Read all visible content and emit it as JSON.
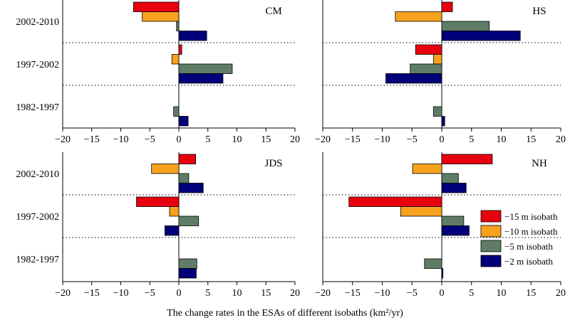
{
  "chart_data": {
    "type": "bar",
    "orientation": "horizontal",
    "xlabel": "The change rates in the ESAs of different isobaths (km²/yr)",
    "xlim": [
      -20,
      20
    ],
    "xticks": [
      "−20",
      "−15",
      "−10",
      "−5",
      "0",
      "5",
      "10",
      "15",
      "20"
    ],
    "categories": [
      "2002-2010",
      "1997-2002",
      "1982-1997"
    ],
    "legend": {
      "position": "bottom-right",
      "entries": [
        {
          "name": "−15 m isobath",
          "color": "#e8000e"
        },
        {
          "name": "−10 m isobath",
          "color": "#f6a21d"
        },
        {
          "name": "−5 m isobath",
          "color": "#5f7d66"
        },
        {
          "name": "−2 m isobath",
          "color": "#00007a"
        }
      ]
    },
    "panels": [
      {
        "title": "CM",
        "series": [
          {
            "name": "−15 m isobath",
            "values": [
              -7.8,
              0.5,
              null
            ]
          },
          {
            "name": "−10 m isobath",
            "values": [
              -6.3,
              -1.2,
              null
            ]
          },
          {
            "name": "−5 m isobath",
            "values": [
              -0.4,
              9.2,
              -0.9
            ]
          },
          {
            "name": "−2 m isobath",
            "values": [
              4.8,
              7.6,
              1.6
            ]
          }
        ]
      },
      {
        "title": "HS",
        "series": [
          {
            "name": "−15 m isobath",
            "values": [
              1.8,
              -4.4,
              null
            ]
          },
          {
            "name": "−10 m isobath",
            "values": [
              -7.8,
              -1.4,
              null
            ]
          },
          {
            "name": "−5 m isobath",
            "values": [
              8.0,
              -5.3,
              -1.4
            ]
          },
          {
            "name": "−2 m isobath",
            "values": [
              13.2,
              -9.4,
              0.5
            ]
          }
        ]
      },
      {
        "title": "JDS",
        "series": [
          {
            "name": "−15 m isobath",
            "values": [
              2.9,
              -7.3,
              null
            ]
          },
          {
            "name": "−10 m isobath",
            "values": [
              -4.7,
              -1.6,
              null
            ]
          },
          {
            "name": "−5 m isobath",
            "values": [
              1.7,
              3.4,
              3.1
            ]
          },
          {
            "name": "−2 m isobath",
            "values": [
              4.2,
              -2.4,
              3.0
            ]
          }
        ]
      },
      {
        "title": "NH",
        "series": [
          {
            "name": "−15 m isobath",
            "values": [
              8.5,
              -15.6,
              null
            ]
          },
          {
            "name": "−10 m isobath",
            "values": [
              -4.9,
              -6.9,
              null
            ]
          },
          {
            "name": "−5 m isobath",
            "values": [
              2.8,
              3.7,
              -2.9
            ]
          },
          {
            "name": "−2 m isobath",
            "values": [
              4.1,
              4.6,
              0.2
            ]
          }
        ]
      }
    ]
  }
}
